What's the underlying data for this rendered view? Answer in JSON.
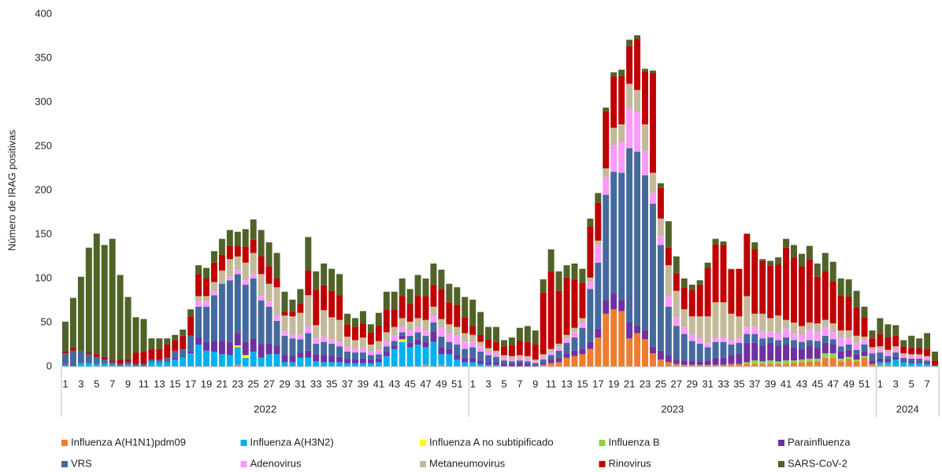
{
  "chart_data": {
    "type": "stacked_bar",
    "y_label": "Número de IRAG positivas",
    "ylim": [
      0,
      400
    ],
    "yticks": [
      0,
      50,
      100,
      150,
      200,
      250,
      300,
      350,
      400
    ],
    "groups": [
      {
        "label": "2022",
        "categories": [
          "1",
          null,
          "3",
          null,
          "5",
          null,
          "7",
          null,
          "9",
          null,
          "11",
          null,
          "13",
          null,
          "15",
          null,
          "17",
          null,
          "19",
          null,
          "21",
          null,
          "23",
          null,
          "25",
          null,
          "27",
          null,
          "29",
          null,
          "31",
          null,
          "33",
          null,
          "35",
          null,
          "37",
          null,
          "39",
          null,
          "41",
          null,
          "43",
          null,
          "45",
          null,
          "47",
          null,
          "49",
          null,
          "51",
          null
        ]
      },
      {
        "label": "2023",
        "categories": [
          "1",
          null,
          "3",
          null,
          "5",
          null,
          "7",
          null,
          "9",
          null,
          "11",
          null,
          "13",
          null,
          "15",
          null,
          "17",
          null,
          "19",
          null,
          "21",
          null,
          "23",
          null,
          "25",
          null,
          "27",
          null,
          "29",
          null,
          "31",
          null,
          "33",
          null,
          "35",
          null,
          "37",
          null,
          "39",
          null,
          "41",
          null,
          "43",
          null,
          "45",
          null,
          "47",
          null,
          "49",
          null,
          "51",
          null
        ]
      },
      {
        "label": "2024",
        "categories": [
          "1",
          null,
          "3",
          null,
          "5",
          null,
          "7",
          null
        ]
      }
    ],
    "series": [
      {
        "name": "Influenza A(H1N1)pdm09",
        "color": "#ed7d31",
        "values": [
          0,
          0,
          0,
          0,
          0,
          0,
          0,
          0,
          0,
          0,
          0,
          0,
          0,
          0,
          0,
          0,
          0,
          0,
          0,
          0,
          0,
          0,
          2,
          0,
          0,
          0,
          0,
          0,
          0,
          0,
          0,
          0,
          0,
          0,
          0,
          0,
          0,
          0,
          0,
          0,
          0,
          0,
          0,
          0,
          0,
          0,
          2,
          0,
          2,
          0,
          0,
          0,
          0,
          0,
          0,
          0,
          0,
          0,
          0,
          0,
          0,
          2,
          4,
          5,
          10,
          12,
          14,
          20,
          33,
          60,
          65,
          63,
          32,
          38,
          31,
          15,
          8,
          5,
          3,
          2,
          2,
          2,
          2,
          2,
          2,
          3,
          3,
          3,
          3,
          3,
          3,
          3,
          3,
          4,
          5,
          6,
          6,
          10,
          10,
          6,
          8,
          6,
          10,
          3,
          2,
          2,
          0,
          0,
          0,
          0,
          0,
          0
        ]
      },
      {
        "name": "Influenza A(H3N2)",
        "color": "#00b0f0",
        "values": [
          2,
          0,
          4,
          4,
          3,
          3,
          2,
          0,
          2,
          0,
          0,
          5,
          5,
          5,
          8,
          10,
          15,
          25,
          18,
          17,
          14,
          13,
          20,
          10,
          17,
          10,
          14,
          14,
          5,
          5,
          10,
          10,
          6,
          5,
          5,
          5,
          4,
          4,
          4,
          4,
          5,
          12,
          20,
          28,
          22,
          25,
          20,
          28,
          12,
          14,
          8,
          5,
          5,
          3,
          2,
          2,
          0,
          0,
          0,
          0,
          0,
          0,
          0,
          0,
          0,
          0,
          0,
          0,
          0,
          0,
          0,
          0,
          0,
          0,
          0,
          0,
          0,
          0,
          0,
          0,
          0,
          0,
          0,
          0,
          0,
          0,
          0,
          0,
          0,
          0,
          0,
          0,
          0,
          0,
          0,
          0,
          0,
          0,
          0,
          0,
          0,
          0,
          0,
          0,
          3,
          3,
          8,
          5,
          4,
          4,
          3,
          1
        ]
      },
      {
        "name": "Influenza A no subtipificado",
        "color": "#ffff00",
        "values": [
          0,
          0,
          0,
          0,
          0,
          0,
          0,
          0,
          0,
          0,
          0,
          0,
          0,
          0,
          0,
          0,
          0,
          0,
          0,
          0,
          0,
          0,
          2,
          3,
          0,
          0,
          0,
          0,
          0,
          0,
          0,
          0,
          0,
          0,
          0,
          0,
          0,
          0,
          0,
          0,
          0,
          0,
          0,
          3,
          0,
          0,
          0,
          0,
          0,
          0,
          0,
          0,
          0,
          0,
          0,
          0,
          0,
          0,
          0,
          0,
          0,
          0,
          0,
          0,
          0,
          0,
          0,
          0,
          0,
          0,
          0,
          0,
          0,
          0,
          0,
          0,
          0,
          0,
          0,
          0,
          0,
          0,
          0,
          0,
          0,
          0,
          0,
          0,
          0,
          0,
          0,
          0,
          0,
          0,
          0,
          0,
          0,
          0,
          0,
          0,
          0,
          0,
          0,
          0,
          0,
          0,
          0,
          0,
          0,
          0,
          0,
          0
        ]
      },
      {
        "name": "Influenza  B",
        "color": "#92d050",
        "values": [
          0,
          0,
          0,
          0,
          0,
          0,
          0,
          0,
          0,
          0,
          0,
          0,
          0,
          0,
          0,
          0,
          0,
          0,
          0,
          0,
          0,
          0,
          0,
          0,
          0,
          0,
          0,
          0,
          0,
          0,
          0,
          0,
          0,
          0,
          0,
          0,
          0,
          0,
          0,
          0,
          0,
          0,
          0,
          0,
          0,
          0,
          0,
          0,
          0,
          0,
          0,
          0,
          0,
          0,
          0,
          0,
          0,
          0,
          0,
          0,
          0,
          0,
          0,
          0,
          0,
          0,
          0,
          0,
          0,
          0,
          0,
          0,
          0,
          0,
          0,
          0,
          0,
          0,
          0,
          0,
          0,
          0,
          0,
          0,
          0,
          0,
          0,
          2,
          4,
          3,
          4,
          3,
          4,
          3,
          3,
          3,
          3,
          5,
          5,
          3,
          3,
          2,
          2,
          0,
          0,
          0,
          0,
          0,
          0,
          0,
          0,
          0
        ]
      },
      {
        "name": "Parainfluenza",
        "color": "#7030a0",
        "values": [
          1,
          0,
          0,
          0,
          0,
          0,
          0,
          0,
          0,
          0,
          0,
          0,
          0,
          0,
          2,
          0,
          2,
          8,
          10,
          12,
          15,
          15,
          14,
          15,
          15,
          15,
          12,
          10,
          8,
          7,
          6,
          8,
          8,
          8,
          7,
          6,
          5,
          4,
          5,
          4,
          4,
          5,
          4,
          4,
          5,
          6,
          6,
          12,
          8,
          6,
          5,
          5,
          5,
          4,
          3,
          3,
          3,
          3,
          4,
          3,
          2,
          2,
          4,
          5,
          5,
          6,
          6,
          8,
          10,
          15,
          18,
          12,
          18,
          8,
          10,
          8,
          10,
          8,
          5,
          5,
          5,
          4,
          5,
          8,
          8,
          10,
          12,
          22,
          20,
          18,
          20,
          18,
          18,
          15,
          12,
          15,
          12,
          12,
          10,
          8,
          8,
          6,
          5,
          4,
          4,
          3,
          3,
          2,
          2,
          2,
          2,
          0
        ]
      },
      {
        "name": "VRS",
        "color": "#44699d",
        "values": [
          12,
          18,
          14,
          10,
          8,
          5,
          3,
          3,
          3,
          3,
          3,
          3,
          3,
          5,
          8,
          10,
          18,
          35,
          40,
          52,
          65,
          70,
          67,
          65,
          68,
          50,
          42,
          28,
          22,
          20,
          15,
          20,
          12,
          15,
          14,
          12,
          8,
          8,
          7,
          5,
          5,
          6,
          5,
          4,
          8,
          8,
          7,
          10,
          12,
          8,
          12,
          10,
          12,
          10,
          8,
          6,
          4,
          3,
          3,
          3,
          2,
          4,
          5,
          8,
          12,
          15,
          24,
          60,
          75,
          120,
          138,
          145,
          198,
          198,
          176,
          162,
          120,
          55,
          38,
          30,
          22,
          20,
          15,
          18,
          18,
          12,
          12,
          10,
          10,
          8,
          6,
          6,
          8,
          8,
          8,
          6,
          8,
          8,
          6,
          6,
          6,
          5,
          8,
          8,
          7,
          4,
          5,
          3,
          3,
          3,
          2,
          0
        ]
      },
      {
        "name": "Adenovirus",
        "color": "#ff99ff",
        "values": [
          0,
          0,
          0,
          0,
          0,
          0,
          0,
          0,
          0,
          0,
          0,
          0,
          0,
          0,
          0,
          0,
          0,
          6,
          6,
          5,
          0,
          4,
          5,
          5,
          5,
          5,
          6,
          6,
          5,
          5,
          5,
          8,
          6,
          6,
          5,
          5,
          5,
          4,
          5,
          4,
          5,
          6,
          6,
          6,
          6,
          6,
          6,
          8,
          10,
          10,
          10,
          8,
          6,
          6,
          4,
          4,
          3,
          3,
          3,
          3,
          2,
          3,
          3,
          4,
          5,
          6,
          6,
          8,
          20,
          20,
          30,
          35,
          45,
          45,
          28,
          12,
          10,
          12,
          10,
          8,
          8,
          6,
          5,
          5,
          5,
          5,
          5,
          8,
          8,
          8,
          7,
          8,
          10,
          8,
          8,
          12,
          10,
          10,
          8,
          10,
          8,
          8,
          5,
          4,
          4,
          4,
          4,
          3,
          3,
          3,
          3,
          0
        ]
      },
      {
        "name": "Metaneumovirus",
        "color": "#c4b99a",
        "values": [
          0,
          0,
          0,
          0,
          0,
          0,
          0,
          0,
          0,
          0,
          0,
          0,
          0,
          0,
          0,
          0,
          0,
          6,
          6,
          10,
          15,
          20,
          15,
          20,
          24,
          25,
          20,
          32,
          18,
          20,
          25,
          35,
          15,
          30,
          25,
          25,
          12,
          10,
          12,
          8,
          10,
          10,
          10,
          10,
          10,
          10,
          12,
          10,
          10,
          10,
          10,
          10,
          8,
          5,
          4,
          3,
          3,
          3,
          3,
          3,
          2,
          3,
          4,
          4,
          4,
          5,
          5,
          5,
          5,
          10,
          20,
          20,
          28,
          25,
          30,
          23,
          20,
          35,
          30,
          20,
          20,
          25,
          30,
          40,
          40,
          30,
          25,
          35,
          15,
          20,
          15,
          20,
          10,
          12,
          10,
          8,
          10,
          8,
          10,
          8,
          8,
          8,
          4,
          3,
          3,
          3,
          3,
          2,
          2,
          2,
          2,
          0
        ]
      },
      {
        "name": "Rinovirus",
        "color": "#c00000",
        "values": [
          2,
          3,
          0,
          2,
          3,
          3,
          2,
          5,
          3,
          13,
          14,
          12,
          12,
          15,
          12,
          15,
          22,
          25,
          20,
          22,
          18,
          15,
          12,
          18,
          15,
          20,
          20,
          10,
          4,
          5,
          10,
          28,
          40,
          28,
          30,
          28,
          14,
          15,
          16,
          14,
          17,
          26,
          20,
          25,
          20,
          25,
          27,
          25,
          34,
          25,
          25,
          18,
          10,
          8,
          10,
          10,
          10,
          12,
          16,
          16,
          17,
          70,
          88,
          60,
          65,
          55,
          40,
          58,
          43,
          65,
          58,
          55,
          43,
          58,
          60,
          113,
          35,
          20,
          20,
          25,
          30,
          36,
          55,
          66,
          65,
          50,
          54,
          70,
          73,
          60,
          60,
          58,
          82,
          74,
          68,
          72,
          53,
          55,
          48,
          40,
          38,
          32,
          22,
          10,
          14,
          14,
          12,
          8,
          7,
          7,
          8,
          6
        ]
      },
      {
        "name": "SARS-CoV-2",
        "color": "#4f6228",
        "values": [
          34,
          57,
          84,
          119,
          137,
          127,
          138,
          96,
          71,
          40,
          37,
          12,
          12,
          7,
          6,
          7,
          8,
          10,
          12,
          13,
          18,
          18,
          16,
          20,
          23,
          30,
          27,
          29,
          23,
          14,
          17,
          38,
          21,
          25,
          25,
          24,
          12,
          10,
          14,
          9,
          15,
          20,
          20,
          20,
          17,
          24,
          20,
          24,
          22,
          21,
          20,
          23,
          30,
          26,
          14,
          17,
          7,
          9,
          15,
          18,
          16,
          15,
          25,
          22,
          14,
          18,
          16,
          9,
          11,
          4,
          5,
          7,
          7,
          4,
          3,
          3,
          5,
          30,
          19,
          10,
          6,
          5,
          6,
          6,
          4,
          1,
          0,
          1,
          8,
          2,
          5,
          8,
          10,
          14,
          14,
          15,
          15,
          21,
          22,
          19,
          20,
          19,
          12,
          9,
          18,
          15,
          12,
          7,
          14,
          11,
          18,
          10
        ]
      }
    ]
  }
}
